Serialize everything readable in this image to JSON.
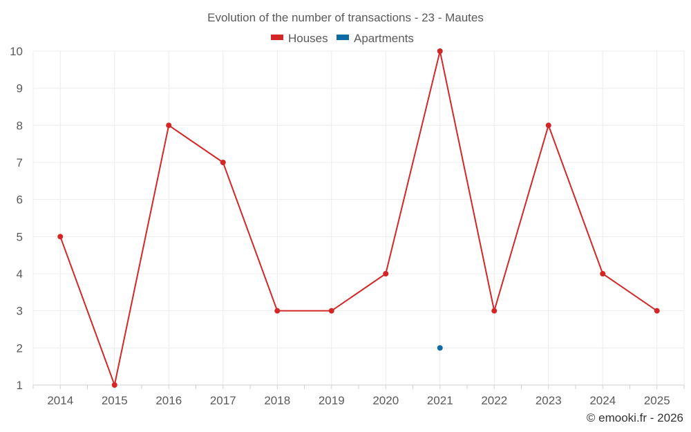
{
  "chart_data": {
    "type": "line",
    "title": "Evolution of the number of transactions - 23 - Mautes",
    "categories": [
      "2014",
      "2015",
      "2016",
      "2017",
      "2018",
      "2019",
      "2020",
      "2021",
      "2022",
      "2023",
      "2024",
      "2025"
    ],
    "series": [
      {
        "name": "Houses",
        "color": "#d32626",
        "values": [
          5,
          1,
          8,
          7,
          3,
          3,
          4,
          10,
          3,
          8,
          4,
          3
        ]
      },
      {
        "name": "Apartments",
        "color": "#0e6ba8",
        "values": [
          null,
          null,
          null,
          null,
          null,
          null,
          null,
          2,
          null,
          null,
          null,
          null
        ]
      }
    ],
    "ylim": [
      1,
      10
    ],
    "yticks": [
      1,
      2,
      3,
      4,
      5,
      6,
      7,
      8,
      9,
      10
    ],
    "xlabel": "",
    "ylabel": "",
    "legend_position": "top-center",
    "grid": true
  },
  "credit": "© emooki.fr - 2026"
}
